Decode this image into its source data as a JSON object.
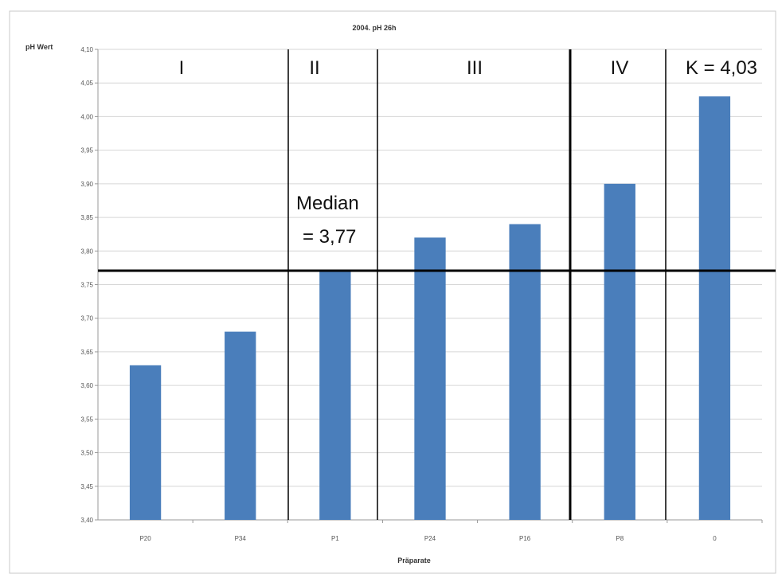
{
  "chart_data": {
    "type": "bar",
    "title": "2004. pH 26h",
    "ylabel": "pH Wert",
    "xlabel": "Präparate",
    "categories": [
      "P20",
      "P34",
      "P1",
      "P24",
      "P16",
      "P8",
      "0"
    ],
    "values": [
      3.63,
      3.68,
      3.77,
      3.82,
      3.84,
      3.9,
      4.03
    ],
    "ylim": [
      3.4,
      4.1
    ],
    "yticks": [
      "3,40",
      "3,45",
      "3,50",
      "3,55",
      "3,60",
      "3,65",
      "3,70",
      "3,75",
      "3,80",
      "3,85",
      "3,90",
      "3,95",
      "4,00",
      "4,05",
      "4,10"
    ],
    "ytick_values": [
      3.4,
      3.45,
      3.5,
      3.55,
      3.6,
      3.65,
      3.7,
      3.75,
      3.8,
      3.85,
      3.9,
      3.95,
      4.0,
      4.05,
      4.1
    ],
    "grid": true,
    "bar_color": "#4a7ebb",
    "median": {
      "value": 3.77,
      "label_line1": "Median",
      "label_line2": "= 3,77"
    },
    "groups": [
      "I",
      "II",
      "III",
      "IV",
      "K = 4,03"
    ]
  }
}
